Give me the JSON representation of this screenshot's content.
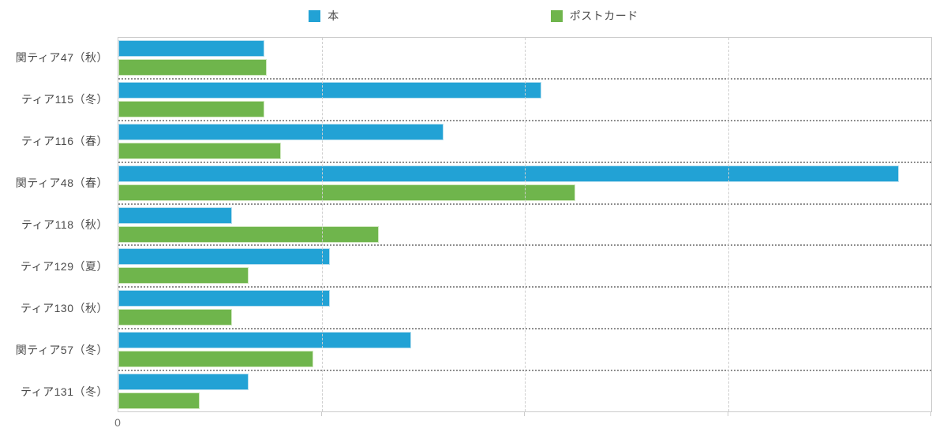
{
  "legend": {
    "items": [
      {
        "label": "本",
        "color": "#22A2D5"
      },
      {
        "label": "ポストカード",
        "color": "#6FB54C"
      }
    ]
  },
  "chart_data": {
    "type": "bar",
    "orientation": "horizontal",
    "title": "",
    "xlabel": "",
    "ylabel": "",
    "legend_position": "top",
    "grid": true,
    "categories": [
      "関ティア47（秋）",
      "ティア115（冬）",
      "ティア116（春）",
      "関ティア48（春）",
      "ティア118（秋）",
      "ティア129（夏）",
      "ティア130（秋）",
      "関ティア57（冬）",
      "ティア131（冬）"
    ],
    "series": [
      {
        "key": "book",
        "name": "本",
        "color": "#22A2D5",
        "border_color": "#B4DDEE",
        "values": [
          72,
          208,
          160,
          384,
          56,
          104,
          104,
          144,
          64
        ]
      },
      {
        "key": "postcard",
        "name": "ポストカード",
        "color": "#6FB54C",
        "border_color": "#CFE7BE",
        "values": [
          73,
          72,
          80,
          225,
          128,
          64,
          56,
          96,
          40
        ]
      }
    ],
    "x_axis": {
      "min": 0,
      "max": 400,
      "tick_labels": [
        "0"
      ],
      "gridlines": [
        100,
        200,
        300,
        400
      ]
    }
  }
}
